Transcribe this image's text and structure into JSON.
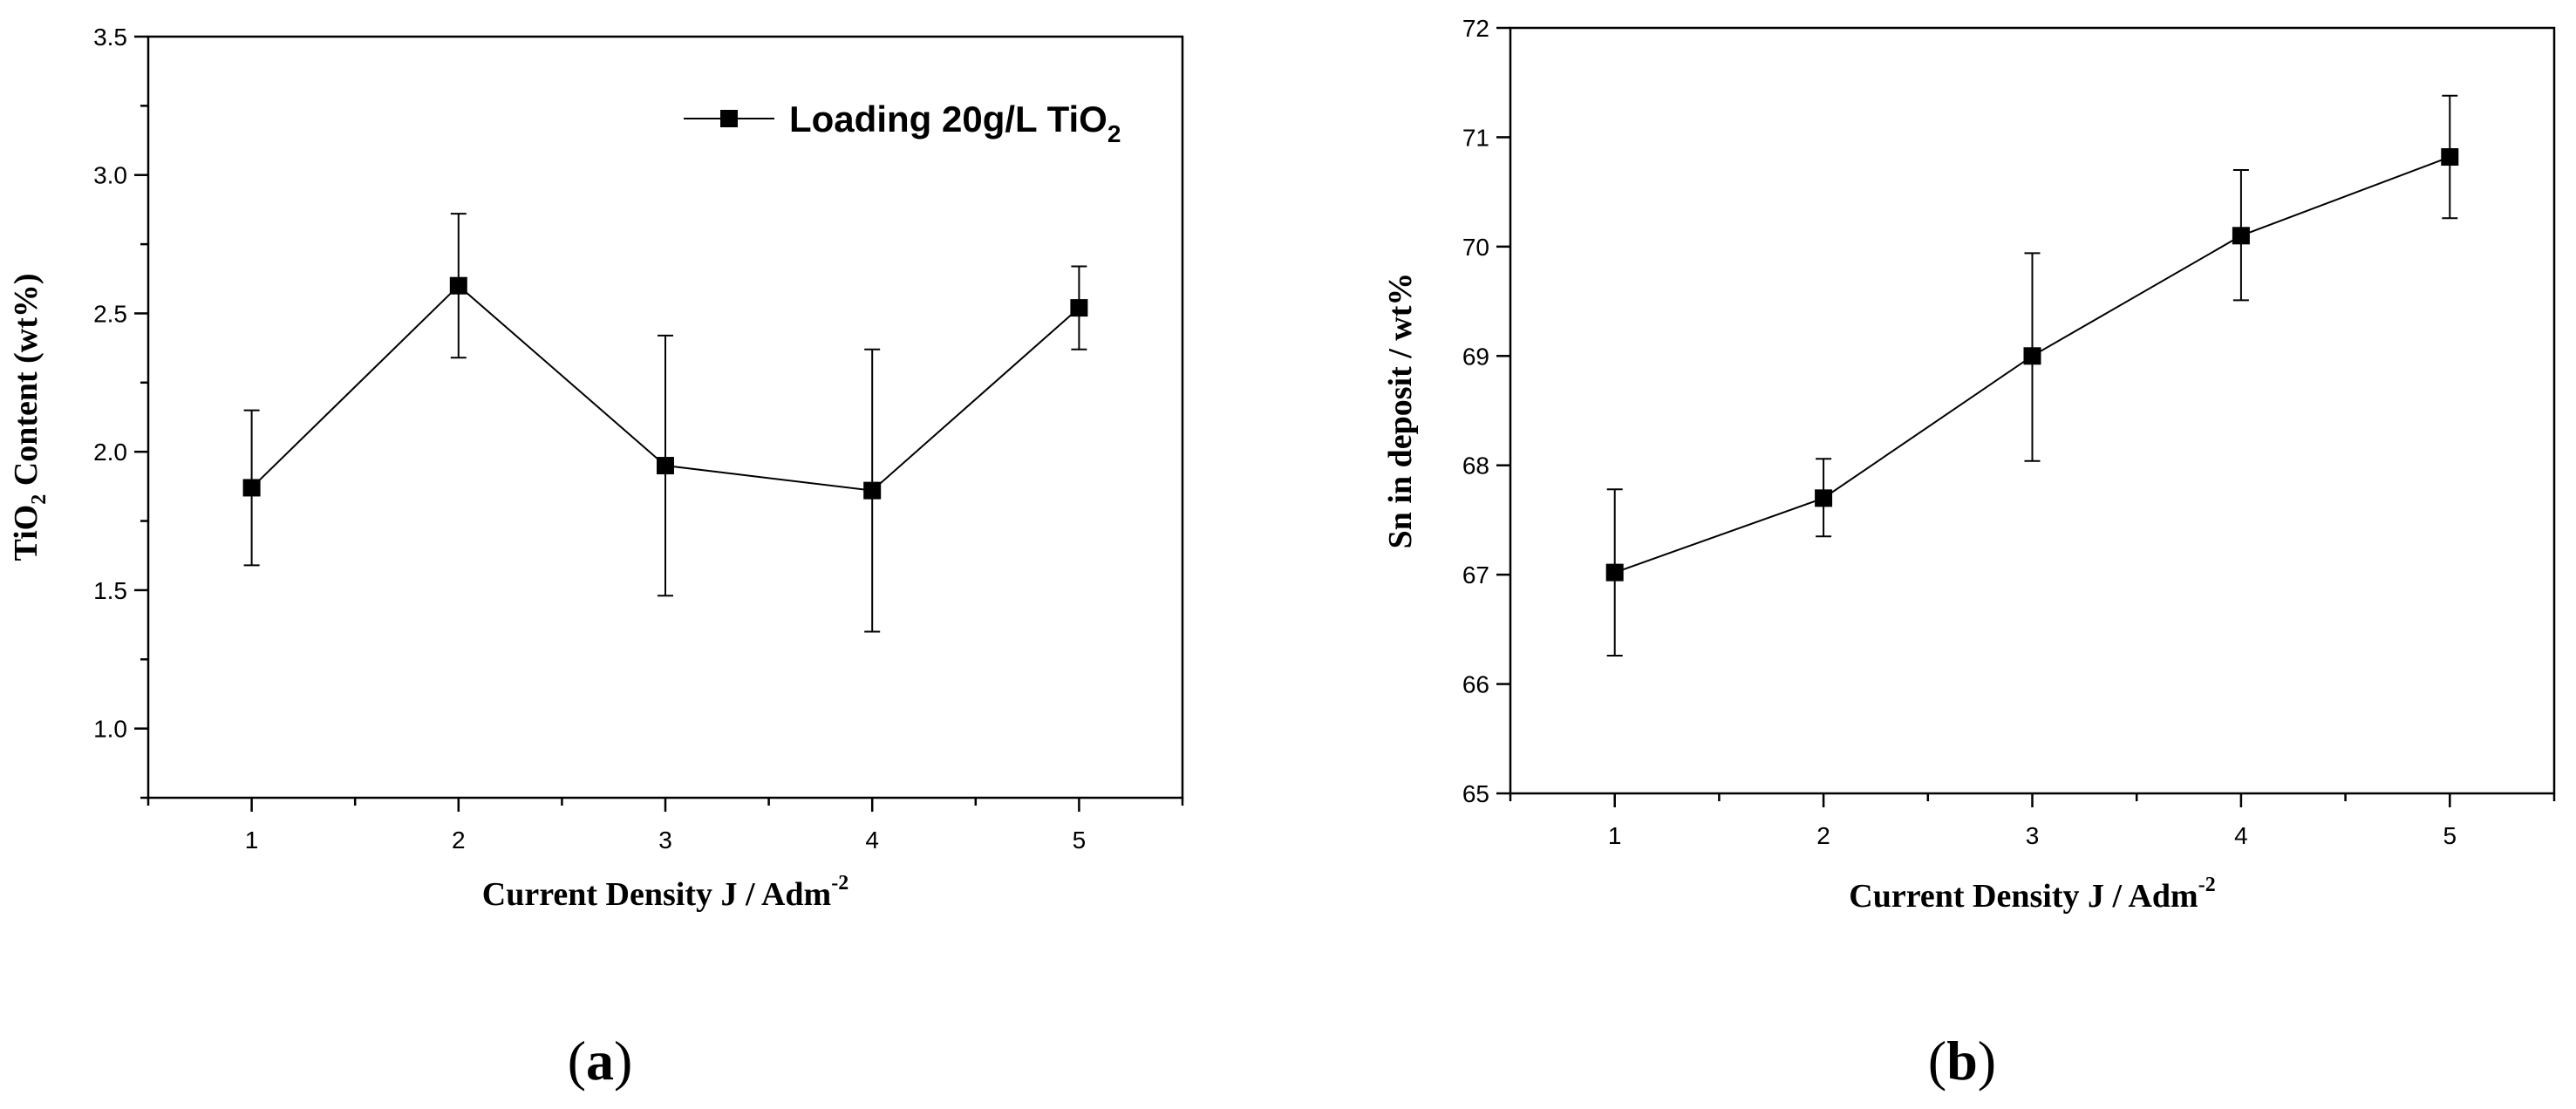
{
  "chart_data": [
    {
      "type": "line",
      "panel": "a",
      "caption": "a",
      "xlabel": "Current Density J / Adm",
      "xlabel_sup": "-2",
      "ylabel_prefix": "TiO",
      "ylabel_sub": "2",
      "ylabel_suffix": " Content (wt%)",
      "xlim": [
        0.5,
        5.5
      ],
      "ylim": [
        0.75,
        3.5
      ],
      "x_ticks": [
        1,
        2,
        3,
        4,
        5
      ],
      "x_tick_labels": [
        "1",
        "2",
        "3",
        "4",
        "5"
      ],
      "y_ticks": [
        1.0,
        1.5,
        2.0,
        2.5,
        3.0,
        3.5
      ],
      "y_tick_labels": [
        "1.0",
        "1.5",
        "2.0",
        "2.5",
        "3.0",
        "3.5"
      ],
      "legend": {
        "label_prefix": "Loading 20g/L TiO",
        "label_sub": "2",
        "location": "top-right"
      },
      "series": [
        {
          "name": "Loading 20g/L TiO2",
          "x": [
            1,
            2,
            3,
            4,
            5
          ],
          "y": [
            1.87,
            2.6,
            1.95,
            1.86,
            2.52
          ],
          "err_low": [
            1.59,
            2.34,
            1.48,
            1.35,
            2.37
          ],
          "err_high": [
            2.15,
            2.86,
            2.42,
            2.37,
            2.67
          ]
        }
      ]
    },
    {
      "type": "line",
      "panel": "b",
      "caption": "b",
      "xlabel": "Current Density J / Adm",
      "xlabel_sup": "-2",
      "ylabel_prefix": "Sn in deposit / wt%",
      "ylabel_sub": "",
      "ylabel_suffix": "",
      "xlim": [
        0.5,
        5.5
      ],
      "ylim": [
        65,
        72
      ],
      "x_ticks": [
        1,
        2,
        3,
        4,
        5
      ],
      "x_tick_labels": [
        "1",
        "2",
        "3",
        "4",
        "5"
      ],
      "y_ticks": [
        65,
        66,
        67,
        68,
        69,
        70,
        71,
        72
      ],
      "y_tick_labels": [
        "65",
        "66",
        "67",
        "68",
        "69",
        "70",
        "71",
        "72"
      ],
      "legend": null,
      "series": [
        {
          "name": "Sn in deposit",
          "x": [
            1,
            2,
            3,
            4,
            5
          ],
          "y": [
            67.02,
            67.7,
            69.0,
            70.1,
            70.82
          ],
          "err_low": [
            66.26,
            67.35,
            68.04,
            69.51,
            70.26
          ],
          "err_high": [
            67.78,
            68.06,
            69.94,
            70.7,
            71.38
          ]
        }
      ]
    }
  ]
}
